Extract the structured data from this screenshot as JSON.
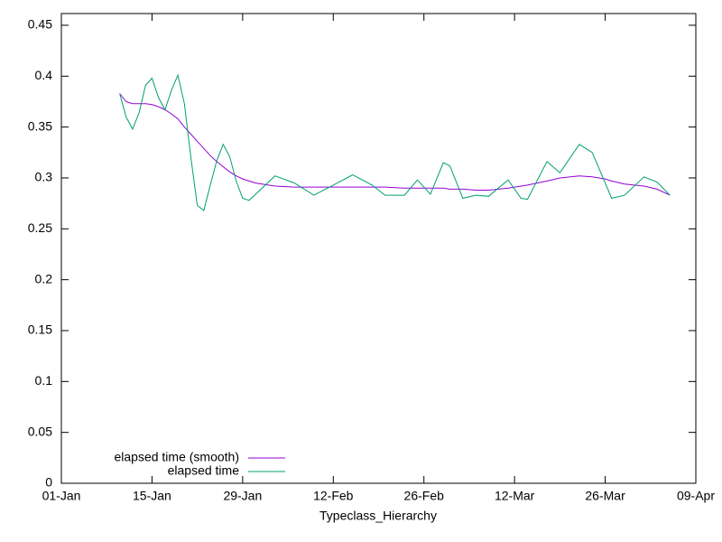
{
  "chart_data": {
    "type": "line",
    "x_label": "Typeclass_Hierarchy",
    "x": [
      "10-Jan",
      "11-Jan",
      "12-Jan",
      "13-Jan",
      "14-Jan",
      "15-Jan",
      "16-Jan",
      "17-Jan",
      "18-Jan",
      "19-Jan",
      "20-Jan",
      "21-Jan",
      "22-Jan",
      "23-Jan",
      "24-Jan",
      "25-Jan",
      "26-Jan",
      "27-Jan",
      "28-Jan",
      "29-Jan",
      "30-Jan",
      "31-Jan",
      "03-Feb",
      "06-Feb",
      "09-Feb",
      "12-Feb",
      "15-Feb",
      "18-Feb",
      "20-Feb",
      "23-Feb",
      "25-Feb",
      "27-Feb",
      "01-Mar",
      "02-Mar",
      "04-Mar",
      "06-Mar",
      "08-Mar",
      "11-Mar",
      "13-Mar",
      "14-Mar",
      "17-Mar",
      "19-Mar",
      "22-Mar",
      "24-Mar",
      "26-Mar",
      "27-Mar",
      "29-Mar",
      "01-Apr",
      "03-Apr",
      "05-Apr"
    ],
    "series": [
      {
        "name": "elapsed time (smooth)",
        "color": "#9400d3",
        "values": [
          0.383,
          0.375,
          0.373,
          0.373,
          0.373,
          0.372,
          0.37,
          0.367,
          0.363,
          0.358,
          0.35,
          0.343,
          0.336,
          0.329,
          0.322,
          0.316,
          0.311,
          0.306,
          0.302,
          0.299,
          0.297,
          0.295,
          0.292,
          0.291,
          0.291,
          0.291,
          0.291,
          0.291,
          0.291,
          0.29,
          0.29,
          0.29,
          0.29,
          0.289,
          0.289,
          0.288,
          0.288,
          0.29,
          0.292,
          0.293,
          0.297,
          0.3,
          0.302,
          0.301,
          0.299,
          0.297,
          0.294,
          0.292,
          0.289,
          0.283
        ]
      },
      {
        "name": "elapsed time",
        "color": "#009e73",
        "values": [
          0.383,
          0.36,
          0.348,
          0.364,
          0.391,
          0.398,
          0.379,
          0.367,
          0.386,
          0.401,
          0.373,
          0.32,
          0.273,
          0.268,
          0.293,
          0.317,
          0.333,
          0.321,
          0.297,
          0.28,
          0.278,
          0.284,
          0.302,
          0.295,
          0.283,
          0.293,
          0.303,
          0.293,
          0.283,
          0.283,
          0.298,
          0.284,
          0.315,
          0.312,
          0.28,
          0.283,
          0.282,
          0.298,
          0.28,
          0.279,
          0.316,
          0.305,
          0.333,
          0.325,
          0.295,
          0.28,
          0.283,
          0.301,
          0.296,
          0.283
        ]
      }
    ],
    "xlim": [
      "01-Jan",
      "09-Apr"
    ],
    "xticks": [
      "01-Jan",
      "15-Jan",
      "29-Jan",
      "12-Feb",
      "26-Feb",
      "12-Mar",
      "26-Mar",
      "09-Apr"
    ],
    "ylim": [
      0,
      0.4615
    ],
    "yticks": [
      0,
      0.05,
      0.1,
      0.15,
      0.2,
      0.25,
      0.3,
      0.35,
      0.4,
      0.45
    ],
    "grid": false,
    "legend": "lower left"
  }
}
